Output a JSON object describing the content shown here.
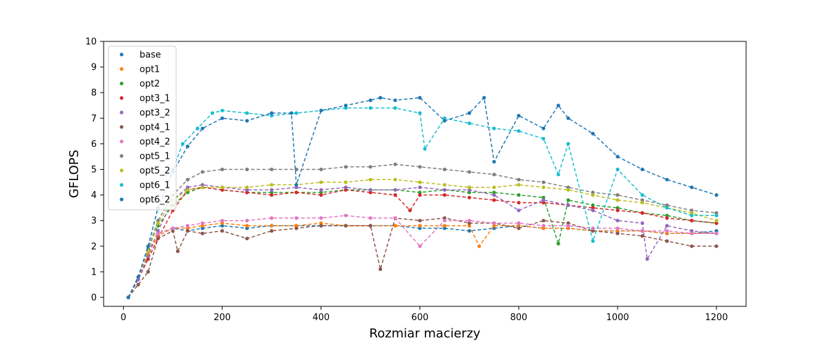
{
  "chart_data": {
    "type": "line",
    "title": "",
    "xlabel": "Rozmiar macierzy",
    "ylabel": "GFLOPS",
    "xlim": [
      -40,
      1260
    ],
    "ylim": [
      -0.35,
      10
    ],
    "xticks": [
      0,
      200,
      400,
      600,
      800,
      1000,
      1200
    ],
    "yticks": [
      0,
      1,
      2,
      3,
      4,
      5,
      6,
      7,
      8,
      9,
      10
    ],
    "grid": false,
    "legend_position": "top-left",
    "markers": "dots",
    "line_style": "dashed",
    "series": [
      {
        "name": "base",
        "color": "#1f77b4",
        "x": [
          10,
          30,
          50,
          70,
          100,
          130,
          160,
          200,
          250,
          300,
          350,
          400,
          450,
          500,
          550,
          600,
          650,
          700,
          750,
          800,
          850,
          900,
          950,
          1000,
          1050,
          1100,
          1150,
          1200
        ],
        "y": [
          0.0,
          0.8,
          1.8,
          2.5,
          2.7,
          2.6,
          2.7,
          2.8,
          2.7,
          2.8,
          2.8,
          2.8,
          2.8,
          2.8,
          2.8,
          2.7,
          2.7,
          2.6,
          2.7,
          2.8,
          2.7,
          2.7,
          2.6,
          2.6,
          2.6,
          2.5,
          2.5,
          2.6
        ]
      },
      {
        "name": "opt1",
        "color": "#ff7f0e",
        "x": [
          10,
          30,
          50,
          70,
          100,
          130,
          160,
          200,
          250,
          300,
          350,
          400,
          450,
          500,
          550,
          600,
          650,
          700,
          720,
          750,
          800,
          850,
          900,
          950,
          1000,
          1050,
          1100,
          1150,
          1200
        ],
        "y": [
          0.0,
          0.8,
          1.7,
          2.4,
          2.7,
          2.7,
          2.8,
          2.9,
          2.8,
          2.8,
          2.8,
          2.9,
          2.8,
          2.8,
          2.8,
          2.8,
          2.8,
          2.8,
          2.0,
          2.8,
          2.8,
          2.7,
          2.7,
          2.6,
          2.6,
          2.6,
          2.5,
          2.5,
          2.5
        ]
      },
      {
        "name": "opt2",
        "color": "#2ca02c",
        "x": [
          10,
          30,
          50,
          70,
          100,
          130,
          160,
          200,
          250,
          300,
          350,
          400,
          450,
          500,
          550,
          600,
          650,
          700,
          750,
          800,
          850,
          880,
          900,
          950,
          1000,
          1050,
          1100,
          1150,
          1200
        ],
        "y": [
          0.0,
          0.8,
          1.9,
          2.8,
          3.6,
          4.1,
          4.3,
          4.2,
          4.1,
          4.1,
          4.1,
          4.1,
          4.2,
          4.2,
          4.2,
          4.1,
          4.2,
          4.1,
          4.1,
          4.0,
          3.9,
          2.1,
          3.8,
          3.6,
          3.5,
          3.3,
          3.2,
          3.0,
          2.9
        ]
      },
      {
        "name": "opt3_1",
        "color": "#d62728",
        "x": [
          10,
          30,
          50,
          70,
          100,
          130,
          160,
          200,
          250,
          300,
          350,
          400,
          450,
          500,
          550,
          580,
          600,
          650,
          700,
          750,
          800,
          850,
          900,
          950,
          1000,
          1050,
          1100,
          1150,
          1200
        ],
        "y": [
          0.0,
          0.7,
          1.5,
          2.3,
          3.4,
          4.2,
          4.3,
          4.2,
          4.1,
          4.0,
          4.1,
          4.0,
          4.2,
          4.1,
          4.0,
          3.4,
          4.0,
          4.0,
          3.9,
          3.8,
          3.7,
          3.7,
          3.6,
          3.5,
          3.4,
          3.3,
          3.1,
          3.0,
          2.9
        ]
      },
      {
        "name": "opt3_2",
        "color": "#9467bd",
        "x": [
          10,
          30,
          50,
          70,
          100,
          130,
          160,
          200,
          250,
          300,
          350,
          400,
          450,
          500,
          550,
          600,
          650,
          700,
          750,
          800,
          850,
          900,
          950,
          1000,
          1050,
          1060,
          1100,
          1150,
          1200
        ],
        "y": [
          0.0,
          0.7,
          1.6,
          2.6,
          3.8,
          4.3,
          4.4,
          4.3,
          4.2,
          4.2,
          4.3,
          4.2,
          4.3,
          4.2,
          4.2,
          4.3,
          4.2,
          4.2,
          4.0,
          3.4,
          3.8,
          3.6,
          3.4,
          3.0,
          2.9,
          1.5,
          2.8,
          2.6,
          2.5
        ]
      },
      {
        "name": "opt4_1",
        "color": "#8c564b",
        "x": [
          10,
          30,
          50,
          70,
          100,
          110,
          130,
          160,
          200,
          250,
          300,
          350,
          400,
          450,
          500,
          520,
          550,
          600,
          650,
          700,
          750,
          800,
          850,
          900,
          950,
          1000,
          1050,
          1100,
          1150,
          1200
        ],
        "y": [
          0.0,
          0.5,
          1.0,
          2.3,
          2.6,
          1.8,
          2.6,
          2.5,
          2.6,
          2.3,
          2.6,
          2.7,
          2.8,
          2.8,
          2.8,
          1.1,
          3.1,
          3.0,
          3.1,
          2.9,
          2.9,
          2.7,
          3.0,
          2.9,
          2.6,
          2.5,
          2.4,
          2.2,
          2.0,
          2.0
        ]
      },
      {
        "name": "opt4_2",
        "color": "#e377c2",
        "x": [
          10,
          30,
          50,
          70,
          100,
          130,
          160,
          200,
          250,
          300,
          350,
          400,
          450,
          500,
          550,
          600,
          650,
          700,
          750,
          800,
          850,
          900,
          950,
          1000,
          1050,
          1100,
          1150,
          1200
        ],
        "y": [
          0.0,
          0.8,
          1.8,
          2.5,
          2.7,
          2.8,
          2.9,
          3.0,
          3.0,
          3.1,
          3.1,
          3.1,
          3.2,
          3.1,
          3.1,
          2.0,
          3.0,
          3.0,
          2.9,
          2.9,
          2.8,
          2.8,
          2.7,
          2.7,
          2.6,
          2.6,
          2.5,
          2.5
        ]
      },
      {
        "name": "opt5_1",
        "color": "#7f7f7f",
        "x": [
          10,
          30,
          50,
          70,
          100,
          130,
          160,
          200,
          250,
          300,
          350,
          400,
          450,
          500,
          550,
          600,
          650,
          700,
          750,
          800,
          850,
          900,
          950,
          1000,
          1050,
          1100,
          1150,
          1200
        ],
        "y": [
          0.0,
          0.8,
          1.9,
          3.0,
          4.0,
          4.6,
          4.9,
          5.0,
          5.0,
          5.0,
          5.0,
          5.0,
          5.1,
          5.1,
          5.2,
          5.1,
          5.0,
          4.9,
          4.8,
          4.6,
          4.5,
          4.3,
          4.1,
          4.0,
          3.8,
          3.6,
          3.4,
          3.3
        ]
      },
      {
        "name": "opt5_2",
        "color": "#bcbd22",
        "x": [
          10,
          30,
          50,
          70,
          100,
          130,
          160,
          200,
          250,
          300,
          350,
          400,
          450,
          500,
          550,
          600,
          650,
          700,
          750,
          800,
          850,
          900,
          950,
          1000,
          1050,
          1100,
          1150,
          1200
        ],
        "y": [
          0.0,
          0.8,
          1.8,
          2.9,
          3.8,
          4.2,
          4.3,
          4.3,
          4.3,
          4.4,
          4.4,
          4.5,
          4.5,
          4.6,
          4.6,
          4.5,
          4.4,
          4.3,
          4.3,
          4.4,
          4.3,
          4.2,
          4.0,
          3.8,
          3.7,
          3.5,
          3.3,
          3.0
        ]
      },
      {
        "name": "opt6_1",
        "color": "#17becf",
        "x": [
          10,
          30,
          50,
          70,
          100,
          120,
          150,
          180,
          200,
          250,
          300,
          350,
          400,
          450,
          500,
          550,
          600,
          610,
          650,
          700,
          750,
          800,
          850,
          880,
          900,
          950,
          1000,
          1050,
          1100,
          1150,
          1200
        ],
        "y": [
          0.0,
          0.8,
          2.0,
          3.5,
          5.0,
          6.0,
          6.6,
          7.2,
          7.3,
          7.2,
          7.1,
          7.2,
          7.3,
          7.4,
          7.4,
          7.4,
          7.2,
          5.8,
          7.0,
          6.8,
          6.6,
          6.5,
          6.2,
          4.8,
          6.0,
          2.2,
          5.0,
          4.0,
          3.5,
          3.2,
          3.2
        ]
      },
      {
        "name": "opt6_2",
        "color": "#1f77b4",
        "x": [
          10,
          30,
          50,
          70,
          100,
          130,
          160,
          200,
          250,
          300,
          340,
          350,
          400,
          450,
          500,
          520,
          550,
          600,
          650,
          700,
          730,
          750,
          800,
          850,
          880,
          900,
          950,
          1000,
          1050,
          1100,
          1150,
          1200
        ],
        "y": [
          0.0,
          0.8,
          2.0,
          3.5,
          4.9,
          5.9,
          6.6,
          7.0,
          6.9,
          7.2,
          7.2,
          4.4,
          7.3,
          7.5,
          7.7,
          7.8,
          7.7,
          7.8,
          6.9,
          7.2,
          7.8,
          5.3,
          7.1,
          6.6,
          7.5,
          7.0,
          6.4,
          5.5,
          5.0,
          4.6,
          4.3,
          4.0
        ]
      }
    ]
  }
}
